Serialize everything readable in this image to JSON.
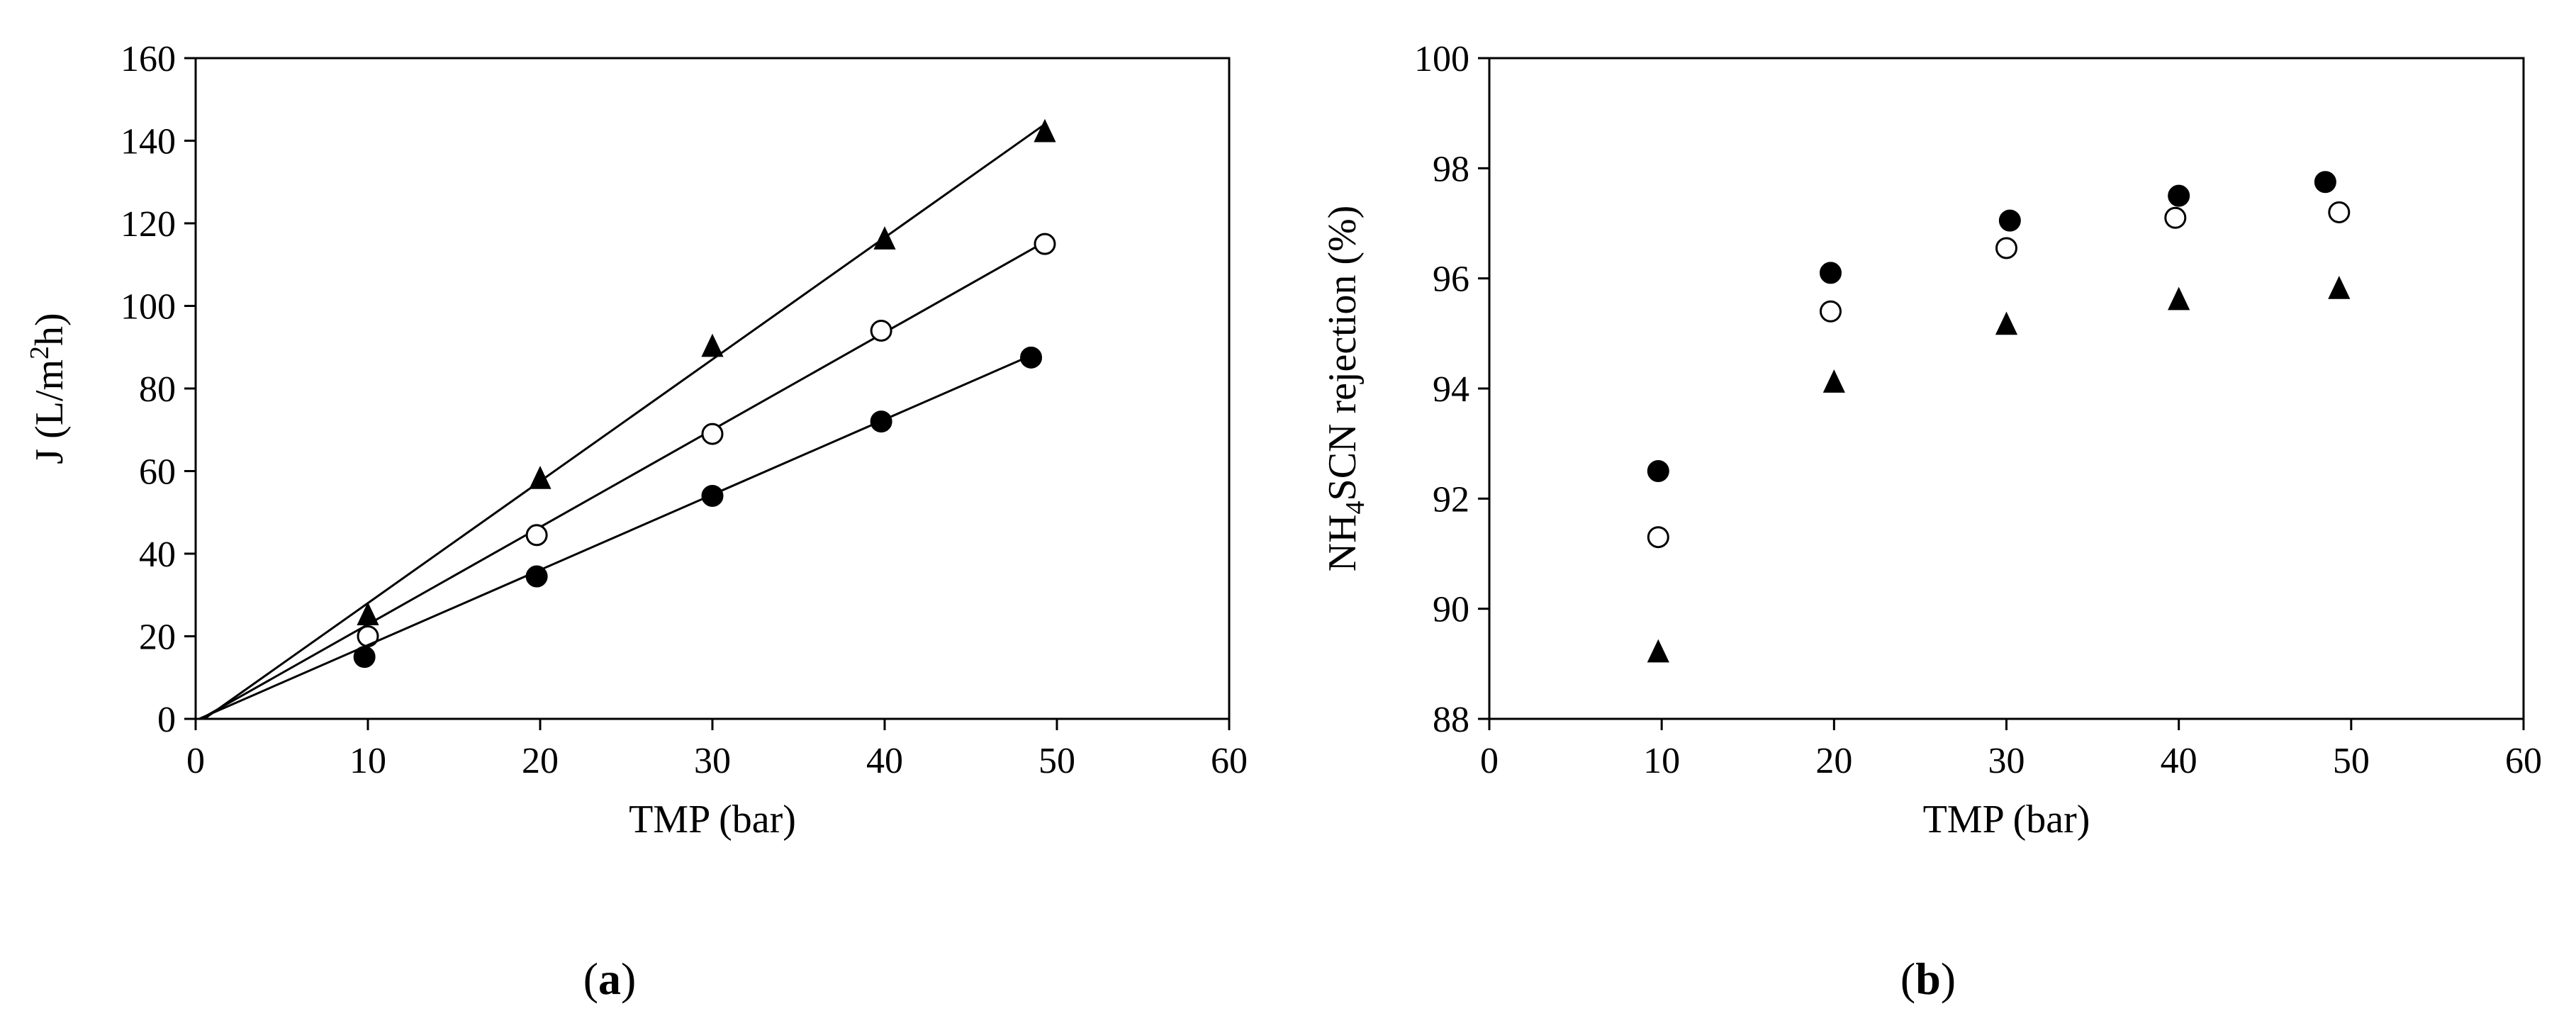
{
  "chart_data": [
    {
      "panel": "(a)",
      "panel_letter": "a",
      "type": "scatter",
      "xlabel": "TMP (bar)",
      "ylabel_parts": [
        "J (L/m",
        "2",
        "h)"
      ],
      "xlim": [
        0,
        60
      ],
      "ylim": [
        0,
        160
      ],
      "xticks": [
        0,
        10,
        20,
        30,
        40,
        50,
        60
      ],
      "yticks": [
        0,
        20,
        40,
        60,
        80,
        100,
        120,
        140,
        160
      ],
      "grid": false,
      "series": [
        {
          "marker": "triangle",
          "fill": "filled",
          "x": [
            10,
            20,
            30,
            40,
            49.3
          ],
          "y": [
            25,
            58,
            90,
            116,
            142
          ],
          "trend": [
            [
              0.5,
              0
            ],
            [
              49.3,
              144
            ]
          ]
        },
        {
          "marker": "circle",
          "fill": "open",
          "x": [
            10,
            19.8,
            30,
            39.8,
            49.3
          ],
          "y": [
            20,
            44.5,
            69,
            94,
            115
          ],
          "trend": [
            [
              0.3,
              0
            ],
            [
              49.3,
              115.5
            ]
          ]
        },
        {
          "marker": "circle",
          "fill": "filled",
          "x": [
            9.8,
            19.8,
            30,
            39.8,
            48.5
          ],
          "y": [
            15,
            34.5,
            54,
            72,
            87.5
          ],
          "trend": [
            [
              0.2,
              0
            ],
            [
              48.5,
              88
            ]
          ]
        }
      ]
    },
    {
      "panel": "(b)",
      "panel_letter": "b",
      "type": "scatter",
      "xlabel": "TMP (bar)",
      "ylabel_parts": [
        "NH",
        "4",
        "SCN rejection (%)"
      ],
      "xlim": [
        0,
        60
      ],
      "ylim": [
        88,
        100
      ],
      "xticks": [
        0,
        10,
        20,
        30,
        40,
        50,
        60
      ],
      "yticks": [
        88,
        90,
        92,
        94,
        96,
        98,
        100
      ],
      "grid": false,
      "series": [
        {
          "marker": "circle",
          "fill": "filled",
          "x": [
            9.8,
            19.8,
            30.2,
            40,
            48.5
          ],
          "y": [
            92.5,
            96.1,
            97.05,
            97.5,
            97.75
          ]
        },
        {
          "marker": "circle",
          "fill": "open",
          "x": [
            9.8,
            19.8,
            30,
            39.8,
            49.3
          ],
          "y": [
            91.3,
            95.4,
            96.55,
            97.1,
            97.2
          ]
        },
        {
          "marker": "triangle",
          "fill": "filled",
          "x": [
            9.8,
            20,
            30,
            40,
            49.3
          ],
          "y": [
            89.2,
            94.1,
            95.15,
            95.6,
            95.8
          ]
        }
      ]
    }
  ]
}
